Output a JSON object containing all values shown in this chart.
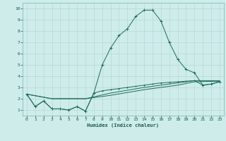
{
  "xlabel": "Humidex (Indice chaleur)",
  "background_color": "#cdecea",
  "grid_color": "#b8d8d5",
  "line_color": "#1e6b5a",
  "xlim": [
    -0.5,
    23.5
  ],
  "ylim": [
    0.5,
    10.5
  ],
  "xtick_labels": [
    "0",
    "1",
    "2",
    "3",
    "4",
    "5",
    "6",
    "7",
    "8",
    "9",
    "10",
    "11",
    "12",
    "13",
    "14",
    "15",
    "16",
    "17",
    "18",
    "19",
    "20",
    "21",
    "22",
    "23"
  ],
  "ytick_labels": [
    "1",
    "2",
    "3",
    "4",
    "5",
    "6",
    "7",
    "8",
    "9",
    "10"
  ],
  "series1": [
    [
      0,
      2.4
    ],
    [
      1,
      1.3
    ],
    [
      2,
      1.8
    ],
    [
      3,
      1.1
    ],
    [
      4,
      1.1
    ],
    [
      5,
      1.0
    ],
    [
      6,
      1.3
    ],
    [
      7,
      0.9
    ],
    [
      8,
      2.5
    ],
    [
      9,
      5.0
    ],
    [
      10,
      6.5
    ],
    [
      11,
      7.6
    ],
    [
      12,
      8.2
    ],
    [
      13,
      9.3
    ],
    [
      14,
      9.85
    ],
    [
      15,
      9.85
    ],
    [
      16,
      8.9
    ],
    [
      17,
      7.0
    ],
    [
      18,
      5.5
    ],
    [
      19,
      4.6
    ],
    [
      20,
      4.3
    ],
    [
      21,
      3.2
    ],
    [
      22,
      3.3
    ],
    [
      23,
      3.5
    ]
  ],
  "series2": [
    [
      0,
      2.4
    ],
    [
      1,
      1.3
    ],
    [
      2,
      1.8
    ],
    [
      3,
      1.1
    ],
    [
      4,
      1.1
    ],
    [
      5,
      1.0
    ],
    [
      6,
      1.3
    ],
    [
      7,
      0.9
    ],
    [
      8,
      2.5
    ],
    [
      9,
      2.7
    ],
    [
      10,
      2.8
    ],
    [
      11,
      2.9
    ],
    [
      12,
      3.0
    ],
    [
      13,
      3.1
    ],
    [
      14,
      3.2
    ],
    [
      15,
      3.3
    ],
    [
      16,
      3.4
    ],
    [
      17,
      3.45
    ],
    [
      18,
      3.5
    ],
    [
      19,
      3.55
    ],
    [
      20,
      3.6
    ],
    [
      21,
      3.2
    ],
    [
      22,
      3.3
    ],
    [
      23,
      3.5
    ]
  ],
  "series3": [
    [
      0,
      2.4
    ],
    [
      3,
      2.0
    ],
    [
      7,
      2.0
    ],
    [
      10,
      2.3
    ],
    [
      14,
      2.8
    ],
    [
      18,
      3.2
    ],
    [
      20,
      3.5
    ],
    [
      23,
      3.55
    ]
  ],
  "series4": [
    [
      0,
      2.4
    ],
    [
      3,
      2.0
    ],
    [
      7,
      2.0
    ],
    [
      10,
      2.5
    ],
    [
      14,
      3.0
    ],
    [
      18,
      3.4
    ],
    [
      20,
      3.6
    ],
    [
      23,
      3.6
    ]
  ]
}
